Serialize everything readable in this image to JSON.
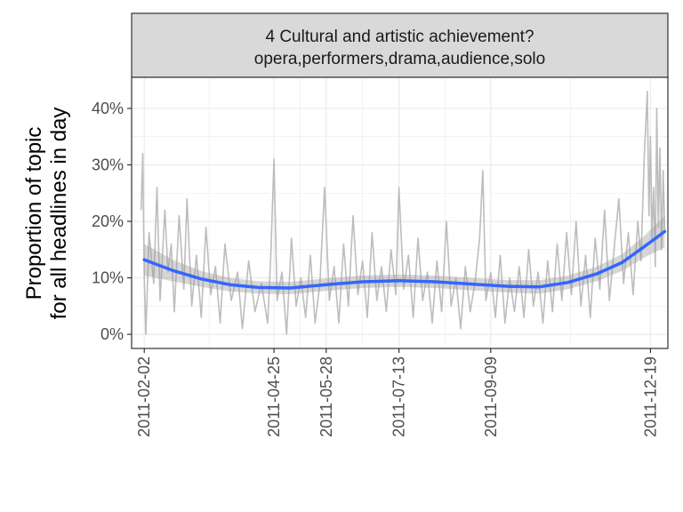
{
  "chart_data": {
    "type": "line",
    "facet_title": [
      "4 Cultural and artistic achievement?",
      "opera,performers,drama,audience,solo"
    ],
    "ylabel": [
      "Proportion of topic",
      "for all headlines in day"
    ],
    "xlabel": "",
    "x_range": [
      "2011-01-25",
      "2011-12-30"
    ],
    "ylim": [
      -2.5,
      45.5
    ],
    "y_ticks": [
      0,
      10,
      20,
      30,
      40
    ],
    "y_tick_labels": [
      "0%",
      "10%",
      "20%",
      "30%",
      "40%"
    ],
    "x_ticks": [
      "2011-02-02",
      "2011-04-25",
      "2011-05-28",
      "2011-07-13",
      "2011-09-09",
      "2011-12-19"
    ],
    "grid": true,
    "legend": "none",
    "colors": {
      "raw": "#bdbdbd",
      "smooth": "#3366ff",
      "band": "#999999",
      "strip_fill": "#d9d9d9",
      "border": "#333333",
      "grid": "#ebebeb"
    },
    "series": [
      {
        "kind": "raw",
        "points": [
          [
            "2011-01-31",
            22
          ],
          [
            "2011-02-01",
            32
          ],
          [
            "2011-02-02",
            10
          ],
          [
            "2011-02-03",
            0
          ],
          [
            "2011-02-05",
            18
          ],
          [
            "2011-02-08",
            9
          ],
          [
            "2011-02-10",
            26
          ],
          [
            "2011-02-12",
            6
          ],
          [
            "2011-02-15",
            22
          ],
          [
            "2011-02-17",
            11
          ],
          [
            "2011-02-19",
            16
          ],
          [
            "2011-02-21",
            4
          ],
          [
            "2011-02-24",
            21
          ],
          [
            "2011-02-27",
            8
          ],
          [
            "2011-03-01",
            24
          ],
          [
            "2011-03-04",
            5
          ],
          [
            "2011-03-07",
            14
          ],
          [
            "2011-03-10",
            3
          ],
          [
            "2011-03-13",
            19
          ],
          [
            "2011-03-16",
            7
          ],
          [
            "2011-03-19",
            12
          ],
          [
            "2011-03-22",
            2
          ],
          [
            "2011-03-25",
            16
          ],
          [
            "2011-03-29",
            6
          ],
          [
            "2011-04-02",
            11
          ],
          [
            "2011-04-05",
            1
          ],
          [
            "2011-04-09",
            13
          ],
          [
            "2011-04-13",
            4
          ],
          [
            "2011-04-17",
            9
          ],
          [
            "2011-04-21",
            2
          ],
          [
            "2011-04-23",
            14
          ],
          [
            "2011-04-25",
            31
          ],
          [
            "2011-04-27",
            6
          ],
          [
            "2011-04-30",
            11
          ],
          [
            "2011-05-03",
            0
          ],
          [
            "2011-05-06",
            17
          ],
          [
            "2011-05-09",
            5
          ],
          [
            "2011-05-12",
            10
          ],
          [
            "2011-05-15",
            3
          ],
          [
            "2011-05-18",
            14
          ],
          [
            "2011-05-21",
            2
          ],
          [
            "2011-05-24",
            9
          ],
          [
            "2011-05-27",
            26
          ],
          [
            "2011-05-30",
            6
          ],
          [
            "2011-06-02",
            12
          ],
          [
            "2011-06-05",
            2
          ],
          [
            "2011-06-08",
            16
          ],
          [
            "2011-06-11",
            5
          ],
          [
            "2011-06-14",
            21
          ],
          [
            "2011-06-17",
            7
          ],
          [
            "2011-06-20",
            13
          ],
          [
            "2011-06-23",
            3
          ],
          [
            "2011-06-26",
            18
          ],
          [
            "2011-06-29",
            6
          ],
          [
            "2011-07-02",
            12
          ],
          [
            "2011-07-05",
            4
          ],
          [
            "2011-07-08",
            15
          ],
          [
            "2011-07-11",
            7
          ],
          [
            "2011-07-13",
            26
          ],
          [
            "2011-07-16",
            8
          ],
          [
            "2011-07-19",
            14
          ],
          [
            "2011-07-22",
            3
          ],
          [
            "2011-07-25",
            17
          ],
          [
            "2011-07-28",
            6
          ],
          [
            "2011-07-31",
            11
          ],
          [
            "2011-08-03",
            2
          ],
          [
            "2011-08-06",
            13
          ],
          [
            "2011-08-09",
            4
          ],
          [
            "2011-08-12",
            20
          ],
          [
            "2011-08-15",
            5
          ],
          [
            "2011-08-18",
            10
          ],
          [
            "2011-08-21",
            1
          ],
          [
            "2011-08-24",
            12
          ],
          [
            "2011-08-27",
            4
          ],
          [
            "2011-08-30",
            9
          ],
          [
            "2011-09-02",
            17
          ],
          [
            "2011-09-04",
            29
          ],
          [
            "2011-09-06",
            6
          ],
          [
            "2011-09-09",
            11
          ],
          [
            "2011-09-12",
            3
          ],
          [
            "2011-09-15",
            14
          ],
          [
            "2011-09-18",
            2
          ],
          [
            "2011-09-21",
            10
          ],
          [
            "2011-09-24",
            4
          ],
          [
            "2011-09-27",
            12
          ],
          [
            "2011-09-30",
            3
          ],
          [
            "2011-10-03",
            15
          ],
          [
            "2011-10-06",
            5
          ],
          [
            "2011-10-09",
            11
          ],
          [
            "2011-10-12",
            2
          ],
          [
            "2011-10-15",
            13
          ],
          [
            "2011-10-18",
            4
          ],
          [
            "2011-10-21",
            16
          ],
          [
            "2011-10-24",
            6
          ],
          [
            "2011-10-27",
            18
          ],
          [
            "2011-10-30",
            7
          ],
          [
            "2011-11-02",
            20
          ],
          [
            "2011-11-05",
            5
          ],
          [
            "2011-11-08",
            14
          ],
          [
            "2011-11-11",
            3
          ],
          [
            "2011-11-14",
            17
          ],
          [
            "2011-11-17",
            8
          ],
          [
            "2011-11-20",
            22
          ],
          [
            "2011-11-23",
            6
          ],
          [
            "2011-11-26",
            15
          ],
          [
            "2011-11-29",
            24
          ],
          [
            "2011-12-02",
            9
          ],
          [
            "2011-12-05",
            18
          ],
          [
            "2011-12-08",
            7
          ],
          [
            "2011-12-11",
            20
          ],
          [
            "2011-12-13",
            13
          ],
          [
            "2011-12-15",
            31
          ],
          [
            "2011-12-17",
            43
          ],
          [
            "2011-12-18",
            21
          ],
          [
            "2011-12-19",
            35
          ],
          [
            "2011-12-20",
            17
          ],
          [
            "2011-12-21",
            26
          ],
          [
            "2011-12-22",
            12
          ],
          [
            "2011-12-23",
            40
          ],
          [
            "2011-12-24",
            19
          ],
          [
            "2011-12-25",
            33
          ],
          [
            "2011-12-26",
            15
          ],
          [
            "2011-12-27",
            29
          ],
          [
            "2011-12-28",
            18
          ]
        ]
      },
      {
        "kind": "smooth",
        "points": [
          [
            "2011-02-02",
            13.2
          ],
          [
            "2011-02-20",
            11.3
          ],
          [
            "2011-03-10",
            9.8
          ],
          [
            "2011-03-28",
            8.8
          ],
          [
            "2011-04-15",
            8.3
          ],
          [
            "2011-05-05",
            8.2
          ],
          [
            "2011-05-28",
            8.8
          ],
          [
            "2011-06-20",
            9.3
          ],
          [
            "2011-07-13",
            9.5
          ],
          [
            "2011-08-05",
            9.3
          ],
          [
            "2011-08-28",
            8.9
          ],
          [
            "2011-09-20",
            8.5
          ],
          [
            "2011-10-10",
            8.4
          ],
          [
            "2011-10-28",
            9.2
          ],
          [
            "2011-11-15",
            10.7
          ],
          [
            "2011-12-01",
            12.7
          ],
          [
            "2011-12-15",
            15.5
          ],
          [
            "2011-12-28",
            18.2
          ]
        ],
        "band_halfwidth": [
          2.8,
          1.9,
          1.4,
          1.2,
          1.1,
          1.1,
          1.1,
          1.1,
          1.1,
          1.1,
          1.1,
          1.1,
          1.2,
          1.2,
          1.3,
          1.5,
          1.9,
          2.8
        ]
      }
    ]
  }
}
